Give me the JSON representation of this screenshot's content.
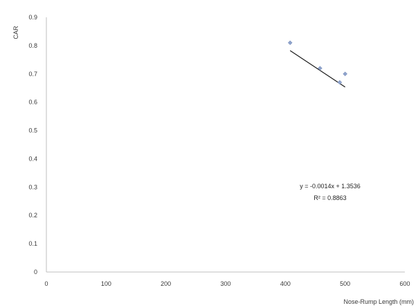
{
  "chart_data": {
    "type": "scatter",
    "title": "",
    "xlabel": "Nose-Rump Length (mm)",
    "ylabel": "CAR",
    "xlim": [
      0,
      600
    ],
    "ylim": [
      0,
      0.9
    ],
    "xticks": [
      0,
      100,
      200,
      300,
      400,
      500,
      600
    ],
    "yticks": [
      0,
      0.1,
      0.2,
      0.3,
      0.4,
      0.5,
      0.6,
      0.7,
      0.8,
      0.9
    ],
    "xtick_labels": [
      "0",
      "100",
      "200",
      "300",
      "400",
      "500",
      "600"
    ],
    "ytick_labels": [
      "0",
      "0.1",
      "0.2",
      "0.3",
      "0.4",
      "0.5",
      "0.6",
      "0.7",
      "0.8",
      "0.9"
    ],
    "grid": false,
    "series": [
      {
        "points": [
          {
            "x": 408,
            "y": 0.81
          },
          {
            "x": 458,
            "y": 0.72
          },
          {
            "x": 491,
            "y": 0.67
          },
          {
            "x": 500,
            "y": 0.7
          }
        ],
        "color": "#8ea3cc"
      }
    ],
    "trendline": {
      "type": "linear",
      "slope": -0.0014,
      "intercept": 1.3536,
      "x_range": [
        408,
        500
      ],
      "color": "#1a1a1a"
    },
    "annotations": {
      "equation": "y = -0.0014x + 1.3536",
      "r_squared": "R² = 0.8863"
    }
  }
}
